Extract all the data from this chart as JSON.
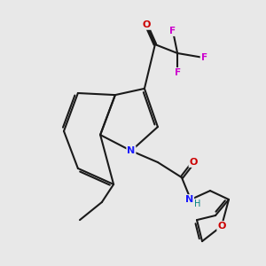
{
  "background_color": "#e8e8e8",
  "bond_color": "#1a1a1a",
  "bond_width": 1.5,
  "fig_width": 3.0,
  "fig_height": 3.0,
  "dpi": 100,
  "atoms": {
    "N": {
      "color": "#1a1aff",
      "fontsize": 8.0,
      "fontweight": "bold"
    },
    "O": {
      "color": "#cc0000",
      "fontsize": 8.0,
      "fontweight": "bold"
    },
    "F": {
      "color": "#cc00cc",
      "fontsize": 8.0,
      "fontweight": "bold"
    },
    "NH": {
      "color": "#1a1aff",
      "fontsize": 7.5,
      "fontweight": "bold"
    },
    "Hcolor": {
      "color": "#008080"
    }
  }
}
